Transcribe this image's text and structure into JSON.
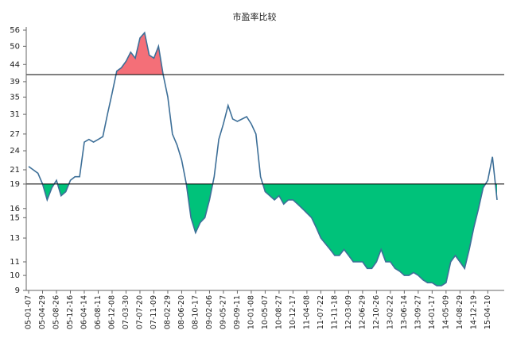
{
  "chart_data": {
    "type": "line",
    "title": "市盈率比较",
    "categories": [
      "05-01-07",
      null,
      null,
      "05-04-29",
      null,
      null,
      "05-08-26",
      null,
      null,
      "05-12-16",
      null,
      null,
      "06-04-14",
      null,
      null,
      "06-08-11",
      null,
      null,
      "06-12-08",
      null,
      null,
      "07-03-30",
      null,
      null,
      "07-07-20",
      null,
      null,
      "07-11-09",
      null,
      null,
      "08-02-29",
      null,
      null,
      "08-06-20",
      null,
      null,
      "08-10-17",
      null,
      null,
      "09-02-06",
      null,
      null,
      "09-05-27",
      null,
      null,
      "09-09-11",
      null,
      null,
      "10-01-08",
      null,
      null,
      "10-05-07",
      null,
      null,
      "10-08-27",
      null,
      null,
      "10-12-17",
      null,
      null,
      "11-04-08",
      null,
      null,
      "11-07-22",
      null,
      null,
      "11-11-18",
      null,
      null,
      "12-03-09",
      null,
      null,
      "12-06-29",
      null,
      null,
      "12-10-26",
      null,
      null,
      "13-02-22",
      null,
      null,
      "13-06-14",
      null,
      null,
      "13-09-27",
      null,
      null,
      "14-01-17",
      null,
      null,
      "14-05-09",
      null,
      null,
      "14-08-29",
      null,
      null,
      "14-12-19",
      null,
      null,
      "15-04-10",
      null,
      null
    ],
    "series": [
      {
        "color": "#3d6f98",
        "values": [
          21.5,
          21,
          20.5,
          19,
          17,
          18.5,
          19.5,
          17.5,
          18,
          19.5,
          20,
          20,
          25.5,
          26,
          25.5,
          26,
          26.5,
          31,
          36,
          42,
          43,
          45,
          48,
          46,
          53,
          55,
          47,
          46,
          50,
          41,
          35,
          27,
          25,
          22.5,
          19,
          15,
          13.5,
          14.5,
          15,
          17,
          20,
          26,
          29,
          33,
          30,
          29.5,
          30,
          30.5,
          29,
          27,
          20,
          18,
          17.5,
          17,
          17.5,
          16.5,
          17,
          17,
          16.5,
          16,
          15.5,
          15,
          14,
          13,
          12.5,
          12,
          11.5,
          11.5,
          12,
          11.5,
          11,
          11,
          11,
          10.5,
          10.5,
          11,
          12,
          11,
          11,
          10.5,
          10.3,
          10,
          10,
          10.2,
          10,
          9.7,
          9.5,
          9.5,
          9.3,
          9.3,
          9.5,
          11,
          11.5,
          11,
          10.5,
          12,
          14,
          16,
          18.5,
          19.5,
          23,
          17
        ]
      }
    ],
    "fills": [
      {
        "threshold": 41,
        "side": "above",
        "color": "#f46f78"
      },
      {
        "threshold": 19,
        "side": "below",
        "color": "#00c27a"
      }
    ],
    "log_scale": true,
    "ylim": [
      9,
      56
    ],
    "yticks": [
      9,
      10,
      11,
      13,
      15,
      16,
      19,
      21,
      24,
      27,
      31,
      35,
      39,
      44,
      50,
      56
    ]
  }
}
